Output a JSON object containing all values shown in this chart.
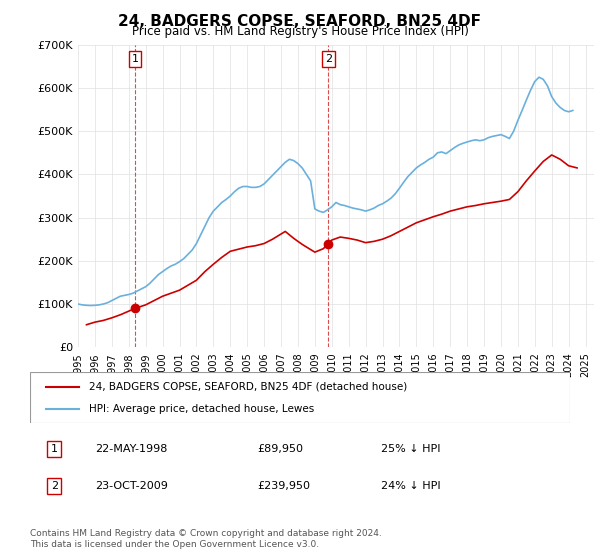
{
  "title": "24, BADGERS COPSE, SEAFORD, BN25 4DF",
  "subtitle": "Price paid vs. HM Land Registry's House Price Index (HPI)",
  "legend_entries": [
    "24, BADGERS COPSE, SEAFORD, BN25 4DF (detached house)",
    "HPI: Average price, detached house, Lewes"
  ],
  "sale1_label": "1",
  "sale1_date": "22-MAY-1998",
  "sale1_price": "£89,950",
  "sale1_hpi": "25% ↓ HPI",
  "sale1_year": 1998.38,
  "sale1_value": 89950,
  "sale2_label": "2",
  "sale2_date": "23-OCT-2009",
  "sale2_price": "£239,950",
  "sale2_hpi": "24% ↓ HPI",
  "sale2_year": 2009.8,
  "sale2_value": 239950,
  "footnote": "Contains HM Land Registry data © Crown copyright and database right 2024.\nThis data is licensed under the Open Government Licence v3.0.",
  "hpi_color": "#6ab0dc",
  "price_color": "#cc0000",
  "ylim": [
    0,
    700000
  ],
  "xlim_start": 1995.0,
  "xlim_end": 2025.5,
  "yticks": [
    0,
    100000,
    200000,
    300000,
    400000,
    500000,
    600000,
    700000
  ],
  "ytick_labels": [
    "£0",
    "£100K",
    "£200K",
    "£300K",
    "£400K",
    "£500K",
    "£600K",
    "£700K"
  ],
  "hpi_data": {
    "years": [
      1995.0,
      1995.25,
      1995.5,
      1995.75,
      1996.0,
      1996.25,
      1996.5,
      1996.75,
      1997.0,
      1997.25,
      1997.5,
      1997.75,
      1998.0,
      1998.25,
      1998.5,
      1998.75,
      1999.0,
      1999.25,
      1999.5,
      1999.75,
      2000.0,
      2000.25,
      2000.5,
      2000.75,
      2001.0,
      2001.25,
      2001.5,
      2001.75,
      2002.0,
      2002.25,
      2002.5,
      2002.75,
      2003.0,
      2003.25,
      2003.5,
      2003.75,
      2004.0,
      2004.25,
      2004.5,
      2004.75,
      2005.0,
      2005.25,
      2005.5,
      2005.75,
      2006.0,
      2006.25,
      2006.5,
      2006.75,
      2007.0,
      2007.25,
      2007.5,
      2007.75,
      2008.0,
      2008.25,
      2008.5,
      2008.75,
      2009.0,
      2009.25,
      2009.5,
      2009.75,
      2010.0,
      2010.25,
      2010.5,
      2010.75,
      2011.0,
      2011.25,
      2011.5,
      2011.75,
      2012.0,
      2012.25,
      2012.5,
      2012.75,
      2013.0,
      2013.25,
      2013.5,
      2013.75,
      2014.0,
      2014.25,
      2014.5,
      2014.75,
      2015.0,
      2015.25,
      2015.5,
      2015.75,
      2016.0,
      2016.25,
      2016.5,
      2016.75,
      2017.0,
      2017.25,
      2017.5,
      2017.75,
      2018.0,
      2018.25,
      2018.5,
      2018.75,
      2019.0,
      2019.25,
      2019.5,
      2019.75,
      2020.0,
      2020.25,
      2020.5,
      2020.75,
      2021.0,
      2021.25,
      2021.5,
      2021.75,
      2022.0,
      2022.25,
      2022.5,
      2022.75,
      2023.0,
      2023.25,
      2023.5,
      2023.75,
      2024.0,
      2024.25
    ],
    "values": [
      100000,
      98000,
      97000,
      96500,
      97000,
      98000,
      100000,
      103000,
      108000,
      113000,
      118000,
      120000,
      122000,
      125000,
      130000,
      135000,
      140000,
      148000,
      158000,
      168000,
      175000,
      182000,
      188000,
      192000,
      198000,
      205000,
      215000,
      225000,
      240000,
      260000,
      280000,
      300000,
      315000,
      325000,
      335000,
      342000,
      350000,
      360000,
      368000,
      372000,
      372000,
      370000,
      370000,
      372000,
      378000,
      388000,
      398000,
      408000,
      418000,
      428000,
      435000,
      432000,
      425000,
      415000,
      400000,
      385000,
      320000,
      315000,
      312000,
      318000,
      325000,
      335000,
      330000,
      328000,
      325000,
      322000,
      320000,
      318000,
      315000,
      318000,
      322000,
      328000,
      332000,
      338000,
      345000,
      355000,
      368000,
      382000,
      395000,
      405000,
      415000,
      422000,
      428000,
      435000,
      440000,
      450000,
      452000,
      448000,
      455000,
      462000,
      468000,
      472000,
      475000,
      478000,
      480000,
      478000,
      480000,
      485000,
      488000,
      490000,
      492000,
      488000,
      483000,
      500000,
      525000,
      548000,
      572000,
      595000,
      615000,
      625000,
      620000,
      605000,
      580000,
      565000,
      555000,
      548000,
      545000,
      548000
    ]
  },
  "price_data": {
    "years": [
      1995.5,
      1996.0,
      1996.5,
      1997.0,
      1997.5,
      1998.38,
      1999.0,
      1999.5,
      2000.0,
      2001.0,
      2002.0,
      2002.5,
      2003.0,
      2003.5,
      2004.0,
      2005.0,
      2005.5,
      2006.0,
      2006.5,
      2007.0,
      2007.25,
      2007.5,
      2007.75,
      2008.0,
      2008.25,
      2008.5,
      2009.0,
      2009.5,
      2009.8,
      2010.0,
      2010.5,
      2011.0,
      2011.5,
      2012.0,
      2012.5,
      2013.0,
      2013.5,
      2014.0,
      2014.5,
      2015.0,
      2015.5,
      2016.0,
      2016.5,
      2017.0,
      2017.5,
      2018.0,
      2018.5,
      2019.0,
      2019.5,
      2020.0,
      2020.5,
      2021.0,
      2021.5,
      2022.0,
      2022.5,
      2023.0,
      2023.5,
      2024.0,
      2024.5
    ],
    "values": [
      52000,
      58000,
      62000,
      68000,
      75000,
      89950,
      98000,
      108000,
      118000,
      132000,
      155000,
      175000,
      192000,
      208000,
      222000,
      232000,
      235000,
      240000,
      250000,
      262000,
      268000,
      260000,
      252000,
      245000,
      238000,
      232000,
      220000,
      228000,
      239950,
      248000,
      255000,
      252000,
      248000,
      242000,
      245000,
      250000,
      258000,
      268000,
      278000,
      288000,
      295000,
      302000,
      308000,
      315000,
      320000,
      325000,
      328000,
      332000,
      335000,
      338000,
      342000,
      360000,
      385000,
      408000,
      430000,
      445000,
      435000,
      420000,
      415000
    ]
  }
}
